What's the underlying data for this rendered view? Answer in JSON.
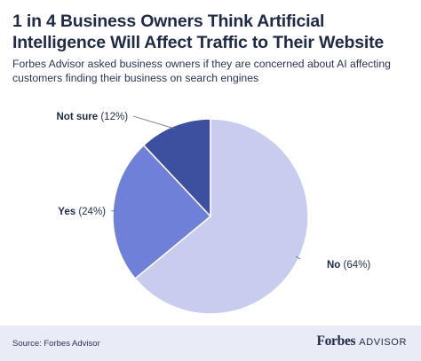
{
  "header": {
    "title": "1 in 4 Business Owners Think Artificial Intelligence Will Affect Traffic to Their Website",
    "subtitle": "Forbes Advisor asked business owners if they are concerned about AI affecting customers finding their business on search engines"
  },
  "chart_data": {
    "type": "pie",
    "categories": [
      "Not sure",
      "Yes",
      "No"
    ],
    "values": [
      12,
      24,
      64
    ],
    "labels": [
      "(12%)",
      "(24%)",
      "(64%)"
    ],
    "colors": [
      "#3d4f9f",
      "#6f80d8",
      "#c8cdf0"
    ]
  },
  "footer": {
    "source": "Source: Forbes Advisor",
    "brand": "Forbes",
    "brand_sub": "ADVISOR"
  }
}
